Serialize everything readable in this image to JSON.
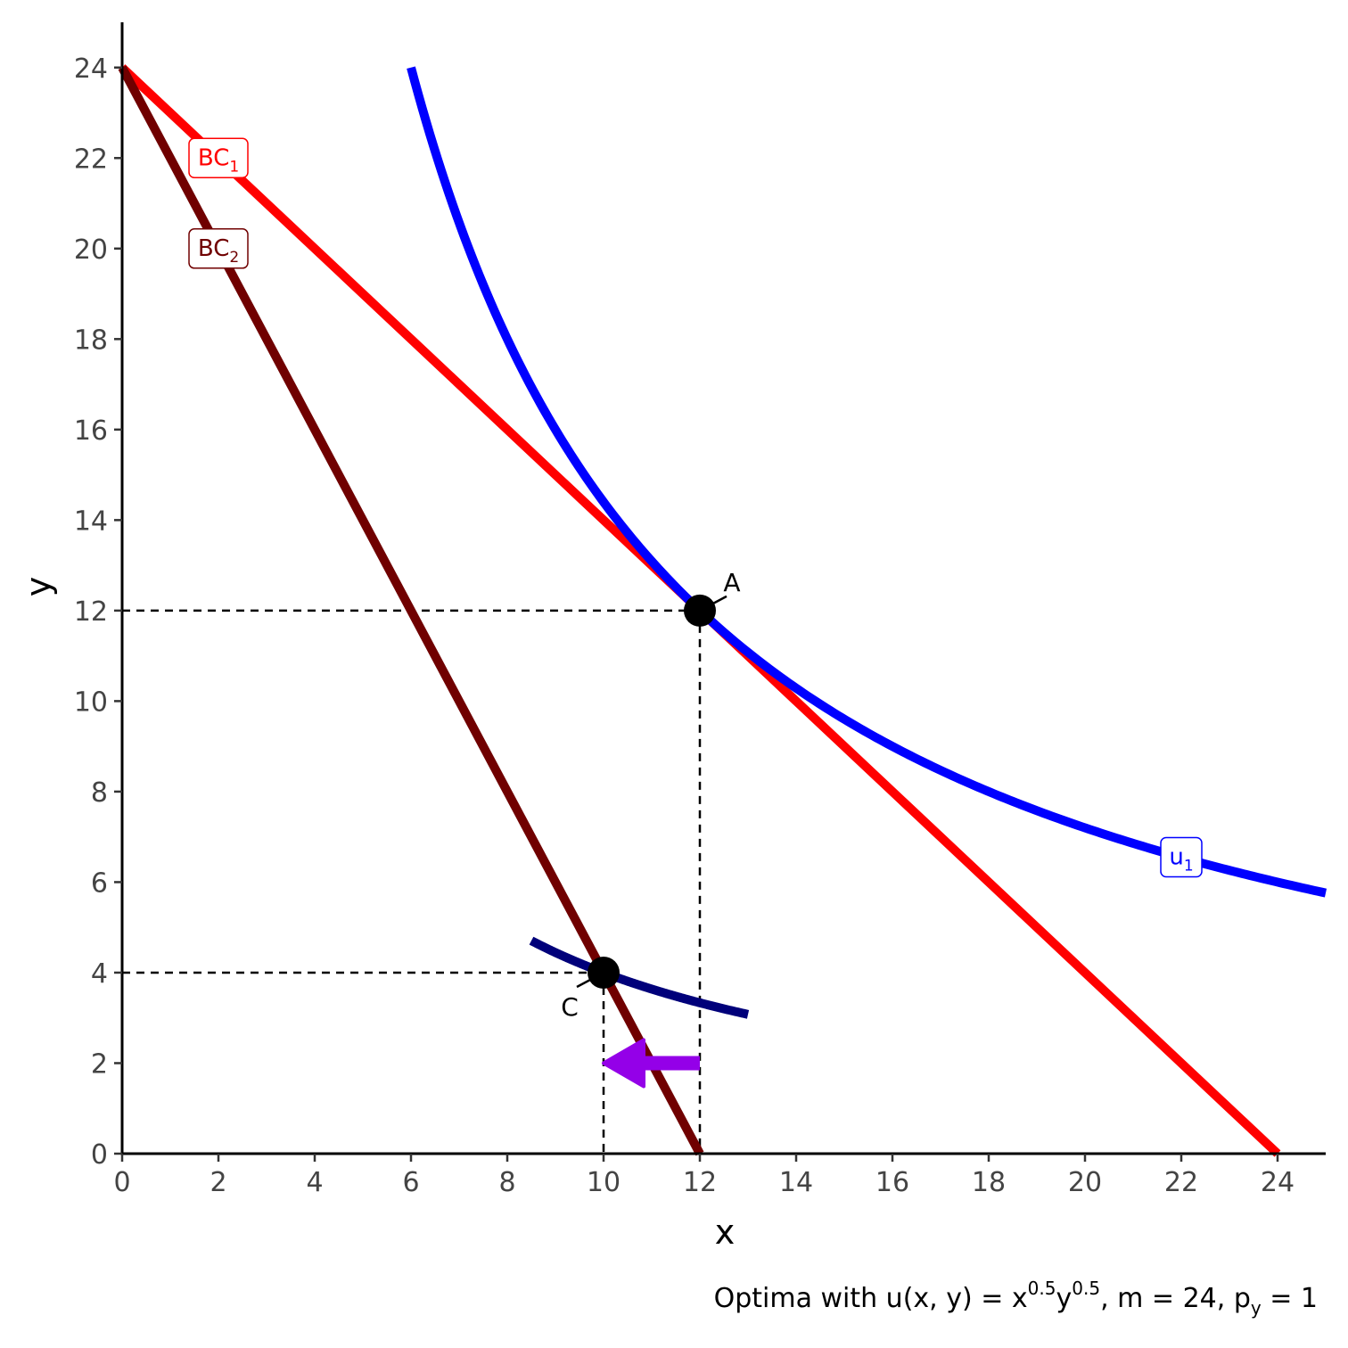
{
  "chart_data": {
    "type": "line",
    "xlabel": "x",
    "ylabel": "y",
    "xlim": [
      0,
      25
    ],
    "ylim": [
      0,
      25
    ],
    "x_ticks": [
      0,
      2,
      4,
      6,
      8,
      10,
      12,
      14,
      16,
      18,
      20,
      22,
      24
    ],
    "y_ticks": [
      0,
      2,
      4,
      6,
      8,
      10,
      12,
      14,
      16,
      18,
      20,
      22,
      24
    ],
    "grid": false,
    "caption": {
      "base": "Optima with u",
      "args": "(x, y)",
      "eq": " = x",
      "exp1": "0.5",
      "ymid": "y",
      "exp2": "0.5",
      "m": ", m = 24, p",
      "sub": "y",
      "tail": " = 1"
    },
    "series": [
      {
        "label": "BC",
        "label_sub": "1",
        "kind": "line",
        "color": "#ff0000",
        "points": [
          [
            0,
            24
          ],
          [
            24,
            0
          ]
        ],
        "label_at": [
          2,
          22
        ]
      },
      {
        "label": "BC",
        "label_sub": "2",
        "kind": "line",
        "color": "#700000",
        "points": [
          [
            0,
            24
          ],
          [
            12,
            0
          ]
        ],
        "label_at": [
          2,
          20
        ]
      },
      {
        "label": "u",
        "label_sub": "1",
        "kind": "indifference",
        "color": "#0000ff",
        "k": 144,
        "x_range": [
          6,
          25
        ],
        "label_at": [
          22,
          6.55
        ]
      },
      {
        "kind": "indifference",
        "color": "#00007a",
        "k": 40,
        "x_range": [
          8.5,
          13
        ]
      }
    ],
    "points": [
      {
        "label": "A",
        "x": 12,
        "y": 12
      },
      {
        "label": "C",
        "x": 10,
        "y": 4
      }
    ],
    "arrow": {
      "from": [
        12,
        2
      ],
      "to": [
        10,
        2
      ],
      "color": "#9400e8"
    }
  }
}
